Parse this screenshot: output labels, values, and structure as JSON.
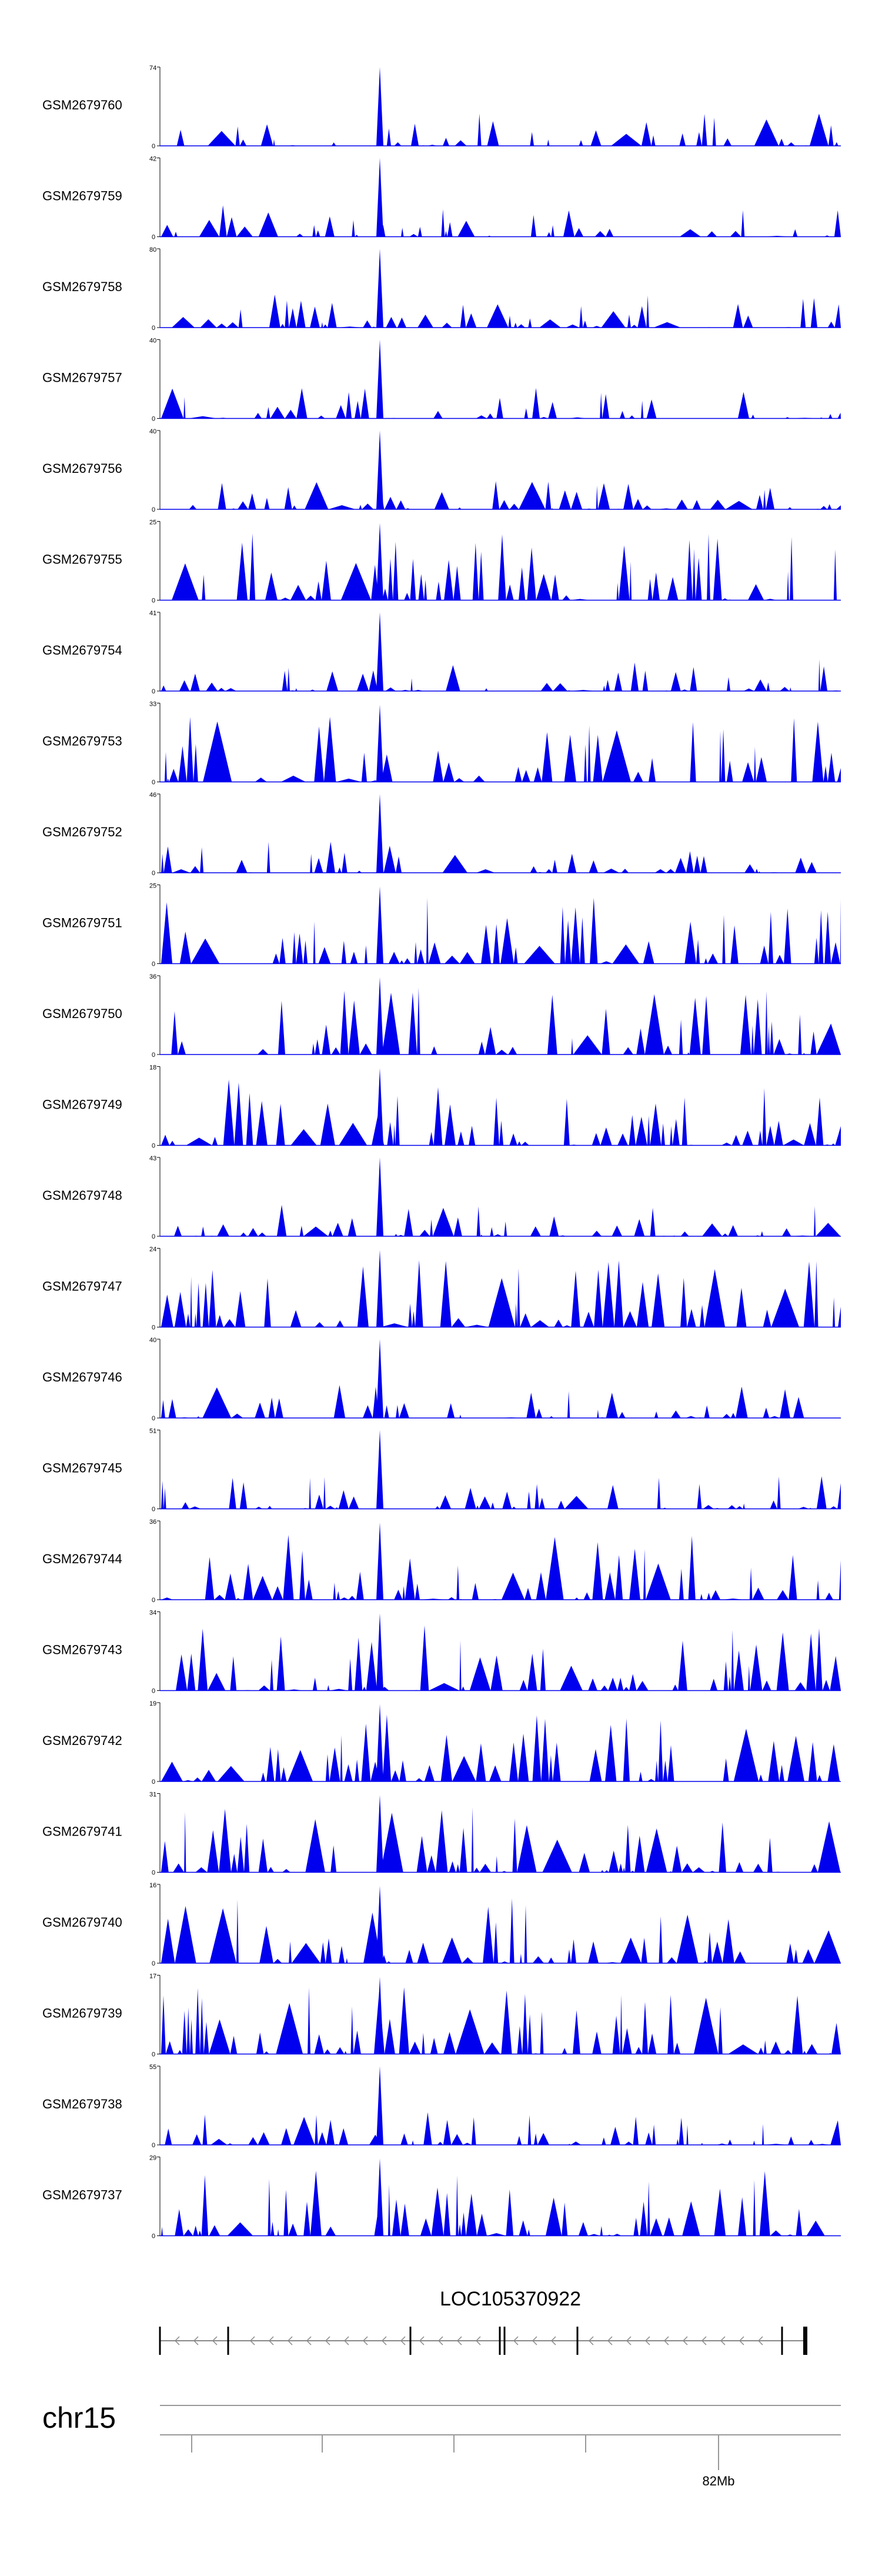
{
  "chart_data": {
    "type": "area",
    "series_color": "#0000ee",
    "tracks": [
      {
        "name": "GSM2679760",
        "max": 74
      },
      {
        "name": "GSM2679759",
        "max": 42
      },
      {
        "name": "GSM2679758",
        "max": 80
      },
      {
        "name": "GSM2679757",
        "max": 40
      },
      {
        "name": "GSM2679756",
        "max": 40
      },
      {
        "name": "GSM2679755",
        "max": 25
      },
      {
        "name": "GSM2679754",
        "max": 41
      },
      {
        "name": "GSM2679753",
        "max": 33
      },
      {
        "name": "GSM2679752",
        "max": 46
      },
      {
        "name": "GSM2679751",
        "max": 25
      },
      {
        "name": "GSM2679750",
        "max": 36
      },
      {
        "name": "GSM2679749",
        "max": 18
      },
      {
        "name": "GSM2679748",
        "max": 43
      },
      {
        "name": "GSM2679747",
        "max": 24
      },
      {
        "name": "GSM2679746",
        "max": 40
      },
      {
        "name": "GSM2679745",
        "max": 51
      },
      {
        "name": "GSM2679744",
        "max": 36
      },
      {
        "name": "GSM2679743",
        "max": 34
      },
      {
        "name": "GSM2679742",
        "max": 19
      },
      {
        "name": "GSM2679741",
        "max": 31
      },
      {
        "name": "GSM2679740",
        "max": 16
      },
      {
        "name": "GSM2679739",
        "max": 17
      },
      {
        "name": "GSM2679738",
        "max": 55
      },
      {
        "name": "GSM2679737",
        "max": 29
      }
    ],
    "y_min_label": "0",
    "gene": {
      "name": "LOC105370922",
      "strand": "-"
    },
    "chromosome": "chr15",
    "x_tick_label": "82Mb"
  }
}
